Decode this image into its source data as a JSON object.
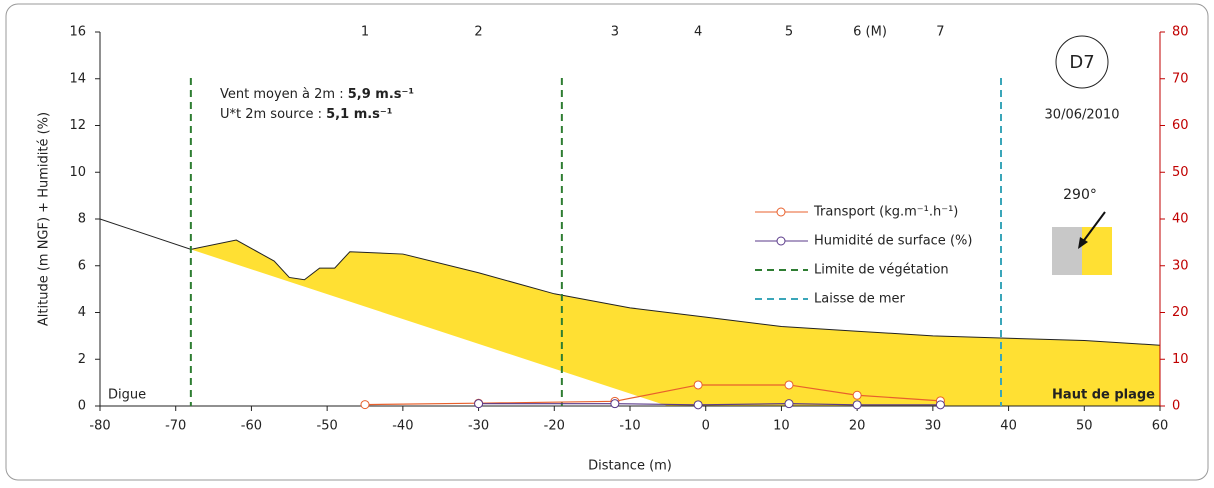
{
  "chart_data": {
    "type": "line",
    "xlabel": "Distance (m)",
    "ylabel": "Altitude (m NGF) + Humidité (%)",
    "xlim": [
      -80,
      60
    ],
    "xticks": [
      -80,
      -70,
      -60,
      -50,
      -40,
      -30,
      -20,
      -10,
      0,
      10,
      20,
      30,
      40,
      50,
      60
    ],
    "ylim": [
      0,
      16
    ],
    "yticks": [
      0,
      2,
      4,
      6,
      8,
      10,
      12,
      14,
      16
    ],
    "y2lim": [
      0,
      80
    ],
    "y2ticks": [
      0,
      10,
      20,
      30,
      40,
      50,
      60,
      70,
      80
    ],
    "y2color": "#c00000",
    "profile": {
      "color": "#222222",
      "x": [
        -80,
        -68,
        -62,
        -57,
        -55,
        -53,
        -51,
        -49,
        -47,
        -40,
        -30,
        -20,
        -10,
        0,
        10,
        20,
        30,
        40,
        50,
        60
      ],
      "y": [
        8,
        6.7,
        7.1,
        6.2,
        5.5,
        5.4,
        5.9,
        5.9,
        6.6,
        6.5,
        5.7,
        4.8,
        4.2,
        3.8,
        3.4,
        3.2,
        3.0,
        2.9,
        2.8,
        2.6
      ]
    },
    "sand": {
      "color": "#ffe033",
      "x": [
        -68,
        -62,
        -57,
        -55,
        -53,
        -51,
        -49,
        -47,
        -40,
        -30,
        -20,
        -10,
        0,
        10,
        20,
        30,
        40,
        50,
        60,
        60,
        -5
      ],
      "y": [
        6.7,
        7.1,
        6.2,
        5.5,
        5.4,
        5.9,
        5.9,
        6.6,
        6.5,
        5.7,
        4.8,
        4.2,
        3.8,
        3.4,
        3.2,
        3.0,
        2.9,
        2.8,
        2.6,
        0,
        0
      ]
    },
    "series": [
      {
        "name": "Transport (kg.m⁻¹.h⁻¹)",
        "color": "#e8602c",
        "axis": "y2",
        "x": [
          -45,
          -30,
          -12,
          -1,
          11,
          20,
          31
        ],
        "values": [
          0.3,
          0.6,
          1,
          4.5,
          4.5,
          2.3,
          1.1
        ]
      },
      {
        "name": "Humidité de surface (%)",
        "color": "#5a3a8a",
        "x": [
          -30,
          -12,
          -1,
          11,
          20,
          31
        ],
        "values": [
          0.1,
          0.1,
          0.05,
          0.1,
          0.05,
          0.05
        ]
      }
    ],
    "vlines": [
      {
        "name": "Limite de végétation",
        "color": "#2e7d32",
        "x": [
          -68,
          -19
        ]
      },
      {
        "name": "Laisse de mer",
        "color": "#3aa6b9",
        "x": [
          39
        ]
      }
    ],
    "stations": {
      "labels": [
        "1",
        "2",
        "3",
        "4",
        "5",
        "6 (M)",
        "7"
      ],
      "x": [
        -45,
        -30,
        -12,
        -1,
        11,
        20,
        31
      ]
    },
    "annotations": {
      "wind_label": "Vent moyen à 2m : ",
      "wind_value": "5,9 m.s⁻¹",
      "threshold_label": "U*t 2m source : ",
      "threshold_value": "5,1 m.s⁻¹",
      "site": "D7",
      "date": "30/06/2010",
      "direction": "290°",
      "left": "Digue",
      "right": "Haut de plage"
    }
  }
}
